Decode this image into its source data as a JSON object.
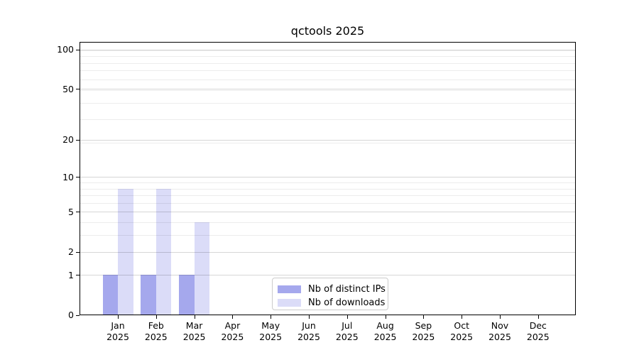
{
  "chart_data": {
    "type": "bar",
    "title": "qctools 2025",
    "categories": [
      "Jan",
      "Feb",
      "Mar",
      "Apr",
      "May",
      "Jun",
      "Jul",
      "Aug",
      "Sep",
      "Oct",
      "Nov",
      "Dec"
    ],
    "year_label": "2025",
    "series": [
      {
        "name": "Nb of distinct IPs",
        "color": "#a5a8ed",
        "values": [
          1,
          1,
          1,
          0,
          0,
          0,
          0,
          0,
          0,
          0,
          0,
          0
        ]
      },
      {
        "name": "Nb of downloads",
        "color": "#dbdcf8",
        "values": [
          8,
          8,
          4,
          0,
          0,
          0,
          0,
          0,
          0,
          0,
          0,
          0
        ]
      }
    ],
    "y_axis": {
      "scale": "log1p",
      "tick_values": [
        0,
        1,
        2,
        5,
        10,
        20,
        50,
        100
      ],
      "top_value": 115
    },
    "x_axis": {
      "tick_label_lines": 2
    },
    "grid": {
      "minor_values": [
        3,
        4,
        6,
        7,
        8,
        9,
        19,
        29,
        39,
        49,
        59,
        69,
        79,
        89,
        99
      ],
      "major_at_tick_values": true
    },
    "legend": {
      "entries": [
        "Nb of distinct IPs",
        "Nb of downloads"
      ],
      "position": "inside lower center"
    }
  },
  "colors": {
    "background": "#ffffff",
    "axis_frame": "#000000",
    "grid_minor": "#ececec",
    "grid_major": "#d6d6d6",
    "legend_border": "#cccccc",
    "text": "#000000"
  }
}
